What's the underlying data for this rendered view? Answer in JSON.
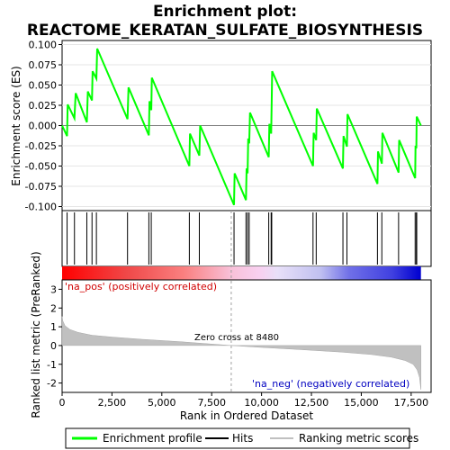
{
  "chart_data": {
    "type": "line",
    "title": "Enrichment plot:",
    "subtitle": "REACTOME_KERATAN_SULFATE_BIOSYNTHESIS",
    "panels": {
      "enrichment": {
        "ylabel": "Enrichment score (ES)",
        "ylim": [
          -0.105,
          0.105
        ],
        "yticks": [
          "0.100",
          "0.075",
          "0.050",
          "0.025",
          "0.000",
          "-0.025",
          "-0.050",
          "-0.075",
          "-0.100"
        ],
        "line_color": "#00ff00",
        "es_points": [
          [
            0,
            0.0
          ],
          [
            250,
            -0.013
          ],
          [
            280,
            0.026
          ],
          [
            620,
            0.009
          ],
          [
            680,
            0.04
          ],
          [
            1240,
            0.004
          ],
          [
            1290,
            0.042
          ],
          [
            1500,
            0.031
          ],
          [
            1530,
            0.067
          ],
          [
            1720,
            0.058
          ],
          [
            1760,
            0.095
          ],
          [
            3280,
            0.008
          ],
          [
            3330,
            0.047
          ],
          [
            4350,
            -0.012
          ],
          [
            4380,
            0.03
          ],
          [
            4470,
            0.019
          ],
          [
            4500,
            0.059
          ],
          [
            6380,
            -0.05
          ],
          [
            6410,
            -0.01
          ],
          [
            6880,
            -0.037
          ],
          [
            6920,
            0.0
          ],
          [
            8620,
            -0.098
          ],
          [
            8650,
            -0.059
          ],
          [
            9220,
            -0.092
          ],
          [
            9250,
            -0.053
          ],
          [
            9300,
            -0.059
          ],
          [
            9330,
            -0.016
          ],
          [
            9380,
            -0.022
          ],
          [
            9420,
            0.016
          ],
          [
            10360,
            -0.039
          ],
          [
            10390,
            0.002
          ],
          [
            10480,
            -0.01
          ],
          [
            10510,
            0.03
          ],
          [
            10530,
            0.067
          ],
          [
            12580,
            -0.05
          ],
          [
            12610,
            -0.009
          ],
          [
            12740,
            -0.018
          ],
          [
            12770,
            0.021
          ],
          [
            14080,
            -0.053
          ],
          [
            14110,
            -0.013
          ],
          [
            14280,
            -0.026
          ],
          [
            14310,
            0.014
          ],
          [
            15810,
            -0.072
          ],
          [
            15840,
            -0.032
          ],
          [
            16030,
            -0.047
          ],
          [
            16060,
            -0.009
          ],
          [
            16870,
            -0.058
          ],
          [
            16900,
            -0.018
          ],
          [
            17700,
            -0.065
          ],
          [
            17720,
            -0.025
          ],
          [
            17760,
            -0.028
          ],
          [
            17780,
            0.011
          ],
          [
            17990,
            0.0
          ]
        ]
      },
      "hits": {
        "positions": [
          250,
          620,
          1240,
          1500,
          1720,
          3280,
          4350,
          4470,
          6380,
          6880,
          8620,
          9220,
          9300,
          9380,
          10360,
          10480,
          10510,
          12580,
          12740,
          14080,
          14280,
          15810,
          16030,
          16870,
          17700,
          17760,
          17780
        ]
      },
      "ranked_metric": {
        "ylabel": "Ranked list metric (PreRanked)",
        "xlabel": "Rank in Ordered Dataset",
        "ylim": [
          -2.5,
          3.5
        ],
        "yticks": [
          "3",
          "2",
          "1",
          "0",
          "-1",
          "-2"
        ],
        "xticks": [
          "0",
          "2,500",
          "5,000",
          "7,500",
          "10,000",
          "12,500",
          "15,000",
          "17,500"
        ],
        "xlim": [
          0,
          18500
        ],
        "n_genes": 17990,
        "zero_cross": 8480,
        "zero_cross_label": "Zero cross at 8480",
        "pos_label": "'na_pos' (positively correlated)",
        "neg_label": "'na_neg' (negatively correlated)",
        "curve_points": [
          [
            0,
            1.55
          ],
          [
            40,
            1.3
          ],
          [
            150,
            1.05
          ],
          [
            400,
            0.85
          ],
          [
            800,
            0.7
          ],
          [
            1500,
            0.55
          ],
          [
            2500,
            0.45
          ],
          [
            4000,
            0.33
          ],
          [
            6000,
            0.2
          ],
          [
            8480,
            0.0
          ],
          [
            10000,
            -0.1
          ],
          [
            12000,
            -0.22
          ],
          [
            14000,
            -0.35
          ],
          [
            15500,
            -0.48
          ],
          [
            16500,
            -0.62
          ],
          [
            17200,
            -0.8
          ],
          [
            17600,
            -1.0
          ],
          [
            17800,
            -1.3
          ],
          [
            17920,
            -1.7
          ],
          [
            17990,
            -2.35
          ]
        ]
      }
    },
    "legend": {
      "position": "bottom",
      "entries": [
        {
          "label": "Enrichment profile",
          "color": "#00ff00"
        },
        {
          "label": "Hits",
          "color": "#000000"
        },
        {
          "label": "Ranking metric scores",
          "color": "#c0c0c0"
        }
      ]
    }
  }
}
